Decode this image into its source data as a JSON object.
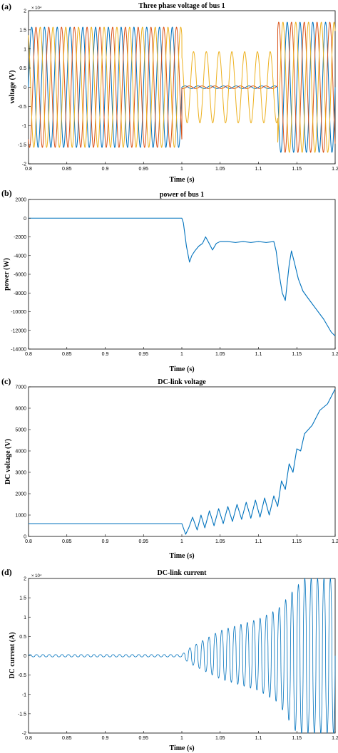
{
  "chart_data": [
    {
      "type": "line",
      "panel_label": "(a)",
      "title": "Three phase voltage of bus 1",
      "xlabel": "Time (s)",
      "ylabel": "voltage (V)",
      "y_exponent": "× 10⁴",
      "xlim": [
        0.8,
        1.2
      ],
      "ylim": [
        -20000,
        20000
      ],
      "xticks": [
        "0.8",
        "0.85",
        "0.9",
        "0.95",
        "1",
        "1.05",
        "1.1",
        "1.15",
        "1.2"
      ],
      "yticks": [
        "2",
        "1.5",
        "1",
        "0.5",
        "0",
        "-0.5",
        "-1",
        "-1.5",
        "-2"
      ],
      "ytick_values": [
        20000,
        15000,
        10000,
        5000,
        0,
        -5000,
        -10000,
        -15000,
        -20000
      ],
      "grid": false,
      "series_colors": [
        "#0072BD",
        "#D95319",
        "#EDB120"
      ],
      "signal": {
        "frequency_hz": 60,
        "phases_deg": [
          0,
          -120,
          120
        ],
        "segments": [
          {
            "t0": 0.8,
            "t1": 1.0,
            "amplitudes": [
              15700,
              15700,
              15700
            ]
          },
          {
            "t0": 1.0,
            "t1": 1.125,
            "amplitudes": [
              350,
              350,
              9300
            ]
          },
          {
            "t0": 1.125,
            "t1": 1.2,
            "amplitudes": [
              17000,
              17000,
              17000
            ]
          }
        ]
      }
    },
    {
      "type": "line",
      "panel_label": "(b)",
      "title": "power of bus 1",
      "xlabel": "Time (s)",
      "ylabel": "power (W)",
      "xlim": [
        0.8,
        1.2
      ],
      "ylim": [
        -14000,
        2000
      ],
      "xticks": [
        "0.8",
        "0.85",
        "0.9",
        "0.95",
        "1",
        "1.05",
        "1.1",
        "1.15",
        "1.2"
      ],
      "yticks": [
        "2000",
        "0",
        "-2000",
        "-4000",
        "-6000",
        "-8000",
        "-10000",
        "-12000",
        "-14000"
      ],
      "ytick_values": [
        2000,
        0,
        -2000,
        -4000,
        -6000,
        -8000,
        -10000,
        -12000,
        -14000
      ],
      "grid": false,
      "series_colors": [
        "#0072BD"
      ],
      "series": [
        {
          "x": [
            0.8,
            0.9,
            1.0,
            1.002,
            1.006,
            1.01,
            1.013,
            1.017,
            1.022,
            1.027,
            1.031,
            1.035,
            1.04,
            1.045,
            1.05,
            1.06,
            1.07,
            1.08,
            1.09,
            1.1,
            1.11,
            1.12,
            1.123,
            1.127,
            1.131,
            1.135,
            1.14,
            1.143,
            1.147,
            1.152,
            1.158,
            1.165,
            1.175,
            1.185,
            1.195,
            1.2
          ],
          "y": [
            0,
            0,
            0,
            -500,
            -3000,
            -4700,
            -4000,
            -3500,
            -3000,
            -2700,
            -2000,
            -2600,
            -3400,
            -2700,
            -2500,
            -2500,
            -2600,
            -2500,
            -2600,
            -2500,
            -2600,
            -2500,
            -3500,
            -6000,
            -8000,
            -8800,
            -5000,
            -3500,
            -4800,
            -6500,
            -7800,
            -8600,
            -9700,
            -10800,
            -12200,
            -12600
          ]
        }
      ]
    },
    {
      "type": "line",
      "panel_label": "(c)",
      "title": "DC-link voltage",
      "xlabel": "Time (s)",
      "ylabel": "DC voltage (V)",
      "xlim": [
        0.8,
        1.2
      ],
      "ylim": [
        0,
        7000
      ],
      "xticks": [
        "0.8",
        "0.85",
        "0.9",
        "0.95",
        "1",
        "1.05",
        "1.1",
        "1.15",
        "1.2"
      ],
      "yticks": [
        "7000",
        "6000",
        "5000",
        "4000",
        "3000",
        "2000",
        "1000",
        "0"
      ],
      "ytick_values": [
        7000,
        6000,
        5000,
        4000,
        3000,
        2000,
        1000,
        0
      ],
      "grid": false,
      "series_colors": [
        "#0072BD"
      ],
      "series": [
        {
          "x": [
            0.8,
            0.9,
            1.0,
            1.002,
            1.005,
            1.009,
            1.014,
            1.02,
            1.025,
            1.03,
            1.036,
            1.042,
            1.048,
            1.054,
            1.06,
            1.066,
            1.072,
            1.078,
            1.084,
            1.09,
            1.096,
            1.102,
            1.108,
            1.114,
            1.12,
            1.125,
            1.13,
            1.135,
            1.14,
            1.145,
            1.15,
            1.155,
            1.16,
            1.17,
            1.18,
            1.19,
            1.2
          ],
          "y": [
            600,
            600,
            600,
            400,
            100,
            400,
            900,
            300,
            1000,
            400,
            1200,
            500,
            1300,
            600,
            1400,
            700,
            1500,
            800,
            1600,
            850,
            1700,
            900,
            1800,
            1000,
            1900,
            1400,
            2600,
            2200,
            3400,
            3000,
            4100,
            4000,
            4800,
            5200,
            5900,
            6200,
            6900
          ]
        }
      ]
    },
    {
      "type": "line",
      "panel_label": "(d)",
      "title": "DC-link current",
      "xlabel": "Time (s)",
      "ylabel": "DC current (A)",
      "y_exponent": "× 10⁴",
      "xlim": [
        0.8,
        1.2
      ],
      "ylim": [
        -20000,
        20000
      ],
      "xticks": [
        "0.8",
        "0.85",
        "0.9",
        "0.95",
        "1",
        "1.05",
        "1.1",
        "1.15",
        "1.2"
      ],
      "yticks": [
        "2",
        "1.5",
        "1",
        "0.5",
        "0",
        "-0.5",
        "-1",
        "-1.5",
        "-2"
      ],
      "ytick_values": [
        20000,
        15000,
        10000,
        5000,
        0,
        -5000,
        -10000,
        -15000,
        -20000
      ],
      "grid": false,
      "series_colors": [
        "#0072BD"
      ],
      "envelope": {
        "oscillation_hz": 120,
        "t": [
          0.8,
          1.0,
          1.01,
          1.05,
          1.1,
          1.125,
          1.15,
          1.16,
          1.2
        ],
        "upper": [
          300,
          300,
          2000,
          6500,
          9500,
          12000,
          18000,
          20000,
          20000
        ],
        "lower": [
          -300,
          -300,
          -2000,
          -6000,
          -9000,
          -12000,
          -20000,
          -20000,
          -20000
        ]
      }
    }
  ]
}
